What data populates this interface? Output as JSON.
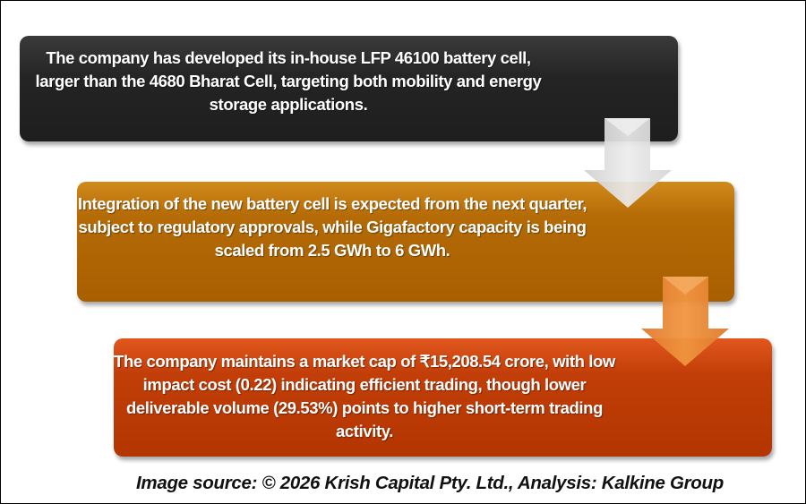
{
  "steps": [
    {
      "text": "The company has developed its in-house LFP 46100 battery cell, larger than the 4680 Bharat Cell, targeting both mobility and energy storage applications.",
      "color": "#262626"
    },
    {
      "text": "Integration of the new battery cell is expected from the next quarter, subject to regulatory approvals, while Gigafactory capacity is being scaled from 2.5 GWh to 6 GWh.",
      "color": "#b06500"
    },
    {
      "text": "The company maintains a market cap of ₹15,208.54 crore, with low impact cost (0.22) indicating efficient trading, though lower deliverable volume (29.53%) points to higher short-term trading activity.",
      "color": "#bb3a04"
    }
  ],
  "caption": "Image source: © 2026 Krish Capital Pty. Ltd., Analysis: Kalkine Group"
}
